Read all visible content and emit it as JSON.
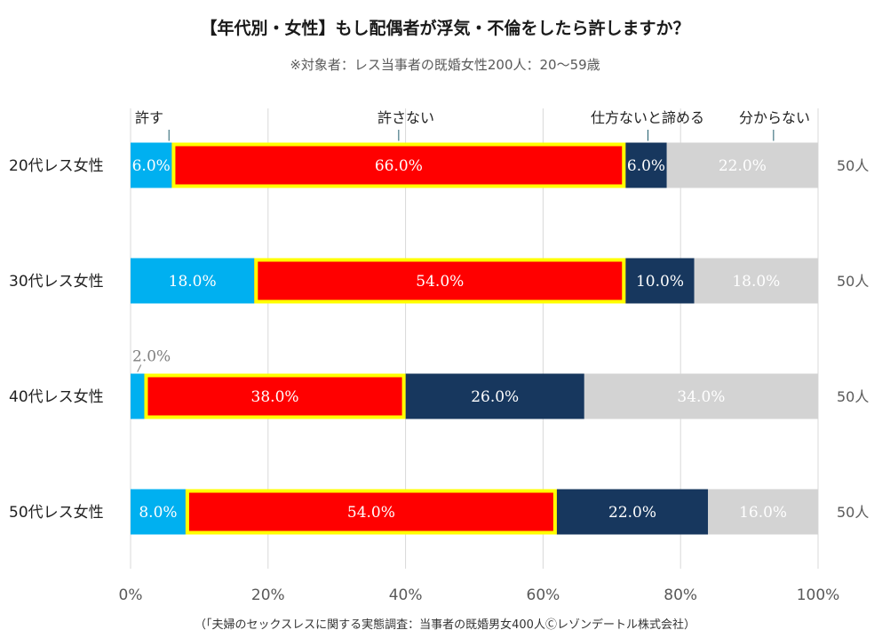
{
  "title": "【年代別・女性】もし配偶者が浮気・不倫をしたら許しますか？",
  "subtitle": "※対象者：レス当事者の既婚女性200人：20〜59歳",
  "source": "（「夫婦のセックスレスに関する実態調査：当事者の既婚男女400人Ⓒレゾンデートル株式会社）",
  "chart_data": {
    "type": "bar",
    "orientation": "horizontal",
    "stacked": true,
    "percent": true,
    "title": "【年代別・女性】もし配偶者が浮気・不倫をしたら許しますか？",
    "subtitle": "※対象者：レス当事者の既婚女性200人：20〜59歳",
    "categories": [
      "20代レス女性",
      "30代レス女性",
      "40代レス女性",
      "50代レス女性"
    ],
    "counts": [
      "50人",
      "50人",
      "50人",
      "50人"
    ],
    "series": [
      {
        "name": "許す",
        "color": "#00b0f0",
        "label_color": "#ffffff",
        "values": [
          6.0,
          18.0,
          2.0,
          8.0
        ],
        "labels": [
          "6.0%",
          "18.0%",
          "2.0%",
          "8.0%"
        ]
      },
      {
        "name": "許さない",
        "color": "#ff0000",
        "label_color": "#ffffff",
        "highlight": "#ffff00",
        "values": [
          66.0,
          54.0,
          38.0,
          54.0
        ],
        "labels": [
          "66.0%",
          "54.0%",
          "38.0%",
          "54.0%"
        ]
      },
      {
        "name": "仕方ないと諦める",
        "color": "#17375e",
        "label_color": "#ffffff",
        "values": [
          6.0,
          10.0,
          26.0,
          22.0
        ],
        "labels": [
          "6.0%",
          "10.0%",
          "26.0%",
          "22.0%"
        ]
      },
      {
        "name": "分からない",
        "color": "#d3d3d3",
        "label_color": "#ffffff",
        "values": [
          22.0,
          18.0,
          34.0,
          16.0
        ],
        "labels": [
          "22.0%",
          "18.0%",
          "34.0%",
          "16.0%"
        ]
      }
    ],
    "legend_colors": [
      "#000000",
      "#ff0000",
      "#000000",
      "#000000"
    ],
    "outside_label_color": "#7f7f7f",
    "xlim": [
      0,
      100
    ],
    "xticks": [
      "0%",
      "20%",
      "40%",
      "60%",
      "80%",
      "100%"
    ],
    "grid": true,
    "legend_position": "top"
  }
}
